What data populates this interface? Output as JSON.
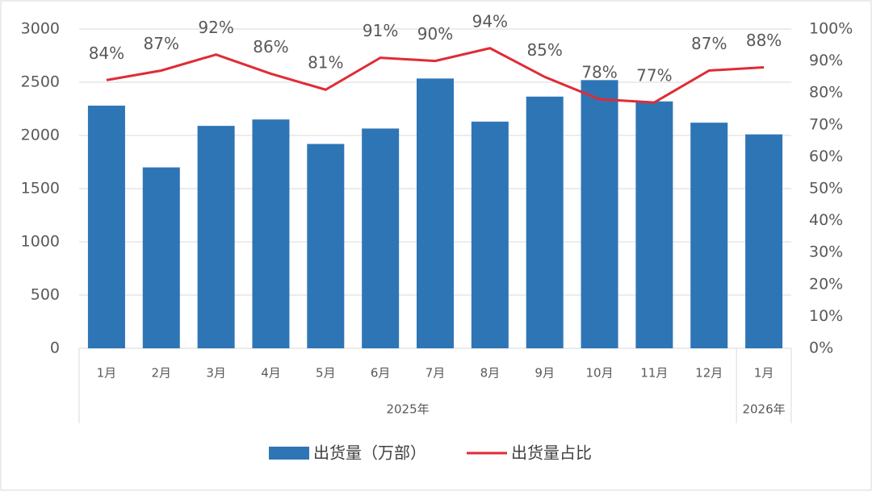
{
  "chart_data": {
    "type": "bar-line",
    "groups": [
      {
        "label": "2025年",
        "categories": [
          "1月",
          "2月",
          "3月",
          "4月",
          "5月",
          "6月",
          "7月",
          "8月",
          "9月",
          "10月",
          "11月",
          "12月"
        ]
      },
      {
        "label": "2026年",
        "categories": [
          "1月"
        ]
      }
    ],
    "series": [
      {
        "name": "出货量（万部）",
        "type": "bar",
        "color": "#2e75b6",
        "values": [
          2280,
          1700,
          2090,
          2150,
          1920,
          2065,
          2535,
          2130,
          2365,
          2520,
          2320,
          2120,
          2010
        ]
      },
      {
        "name": "出货量占比",
        "type": "line",
        "axis": "y2",
        "color": "#e02b35",
        "values": [
          84,
          87,
          92,
          86,
          81,
          91,
          90,
          94,
          85,
          78,
          77,
          87,
          88
        ],
        "value_labels": [
          "84%",
          "87%",
          "92%",
          "86%",
          "81%",
          "91%",
          "90%",
          "94%",
          "85%",
          "78%",
          "77%",
          "87%",
          "88%"
        ]
      }
    ],
    "ylim": [
      0,
      3000
    ],
    "yticks": [
      0,
      500,
      1000,
      1500,
      2000,
      2500,
      3000
    ],
    "y2lim": [
      0,
      100
    ],
    "y2ticks": [
      {
        "value": 0,
        "label": "0%"
      },
      {
        "value": 10,
        "label": "10%"
      },
      {
        "value": 20,
        "label": "20%"
      },
      {
        "value": 30,
        "label": "30%"
      },
      {
        "value": 40,
        "label": "40%"
      },
      {
        "value": 50,
        "label": "50%"
      },
      {
        "value": 60,
        "label": "60%"
      },
      {
        "value": 70,
        "label": "70%"
      },
      {
        "value": 80,
        "label": "80%"
      },
      {
        "value": 90,
        "label": "90%"
      },
      {
        "value": 100,
        "label": "100%"
      }
    ],
    "grid": true,
    "legend": "bottom"
  }
}
